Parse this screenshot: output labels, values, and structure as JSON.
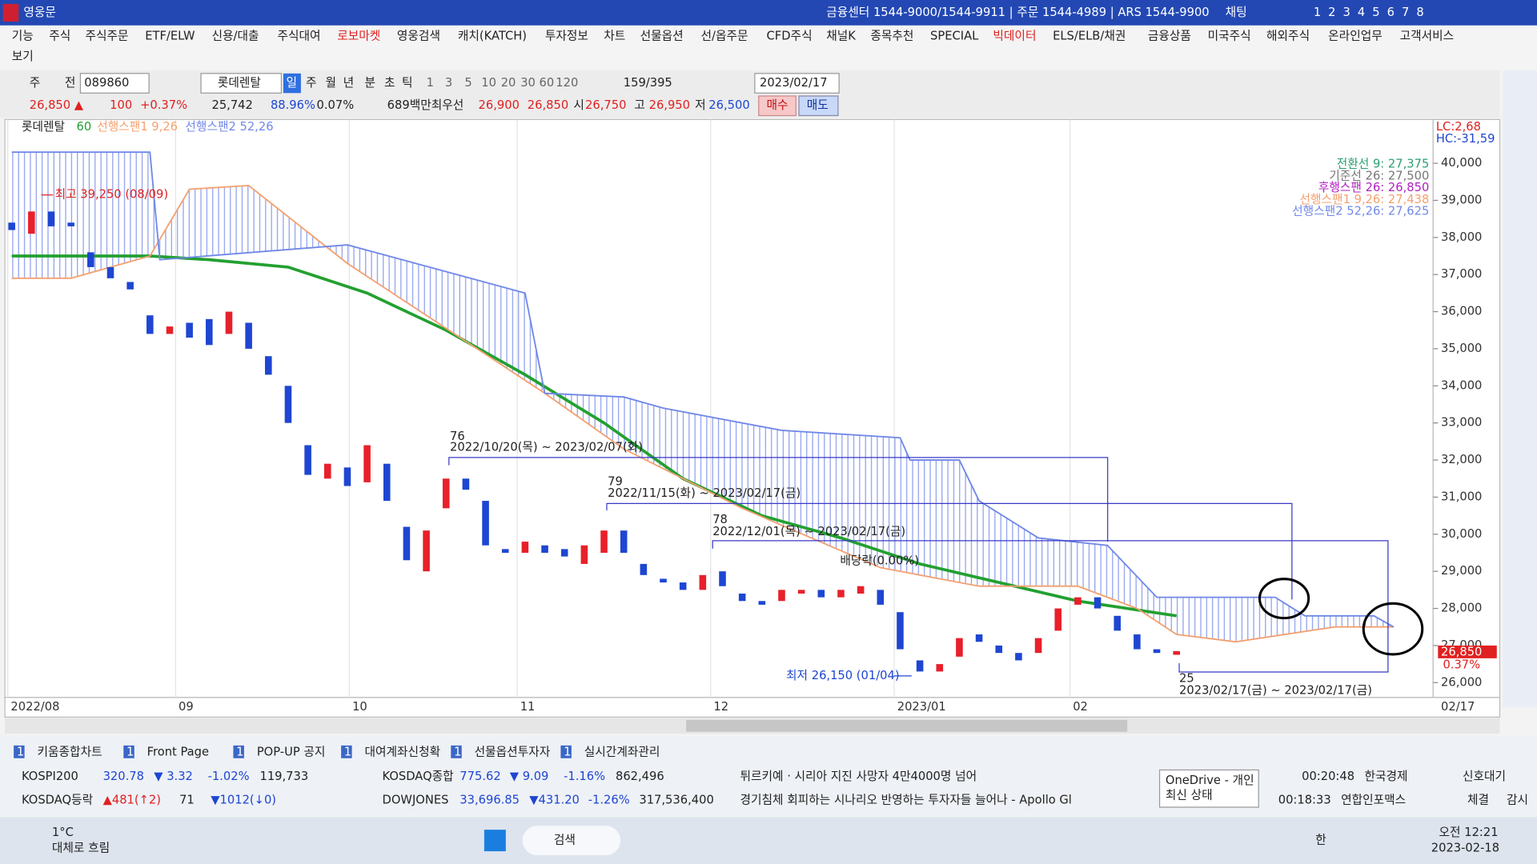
{
  "app": {
    "title": "영웅문",
    "center_info": "금융센터 1544-9000/1544-9911 | 주문 1544-4989 | ARS 1544-9900",
    "chat": "채팅",
    "screens": [
      "1",
      "2",
      "3",
      "4",
      "5",
      "6",
      "7",
      "8"
    ]
  },
  "menu": [
    "기능",
    "주식",
    "주식주문",
    "ETF/ELW",
    "신용/대출",
    "주식대여",
    "로보마켓",
    "영웅검색",
    "캐치(KATCH)",
    "투자정보",
    "차트",
    "선물옵션",
    "선/옵주문",
    "CFD주식",
    "채널K",
    "종목추천",
    "SPECIAL",
    "빅데이터",
    "ELS/ELB/채권",
    "금융상품",
    "미국주식",
    "해외주식",
    "온라인업무",
    "고객서비스",
    "보기"
  ],
  "toolbar": {
    "mode": "주",
    "market": "전",
    "code": "089860",
    "name": "롯데렌탈",
    "periods": [
      "일",
      "주",
      "월",
      "년",
      "분",
      "초",
      "틱"
    ],
    "intervals": [
      "1",
      "3",
      "5",
      "10",
      "20",
      "30",
      "60",
      "120"
    ],
    "count": "159/395",
    "date": "2023/02/17"
  },
  "quote": {
    "price": "26,850 ▲",
    "change": "100",
    "rate": "+0.37%",
    "volume": "25,742",
    "vol_ratio": "88.96%",
    "turnover": "0.07%",
    "amount": "689백만",
    "best_label": "최우선",
    "ask": "26,900",
    "bid": "26,850",
    "open_label": "시",
    "open": "26,750",
    "high_label": "고",
    "high": "26,950",
    "low_label": "저",
    "low": "26,500",
    "buy": "매수",
    "sell": "매도"
  },
  "chart_data": {
    "type": "candlestick",
    "stock": "롯데렌탈",
    "up_color": "#e8202a",
    "down_color": "#1e46d2",
    "open": [
      38400,
      38100,
      38700,
      38400,
      37600,
      37200,
      36800,
      35900,
      35400,
      35700,
      35800,
      35400,
      35700,
      34800,
      34000,
      32400,
      31500,
      31800,
      31400,
      31900,
      30200,
      29000,
      30700,
      31500,
      30900,
      29600,
      29500,
      29700,
      29600,
      29200,
      29500,
      30100,
      29200,
      28800,
      28700,
      28500,
      29000,
      28400,
      28200,
      28200,
      28400,
      28500,
      28300,
      28400,
      28500,
      27900,
      26600,
      26300,
      26700,
      27300,
      27000,
      26800,
      26800,
      27400,
      28100,
      28300,
      27800,
      27300,
      26900,
      26750
    ],
    "close": [
      38200,
      38700,
      38300,
      38300,
      37200,
      36900,
      36600,
      35400,
      35600,
      35300,
      35100,
      36000,
      35000,
      34300,
      33000,
      31600,
      31900,
      31300,
      32400,
      30900,
      29300,
      30100,
      31500,
      31200,
      29700,
      29500,
      29800,
      29500,
      29400,
      29700,
      30100,
      29500,
      28900,
      28700,
      28500,
      28900,
      28600,
      28200,
      28100,
      28500,
      28500,
      28300,
      28500,
      28600,
      28100,
      26900,
      26300,
      26500,
      27200,
      27100,
      26800,
      26600,
      27200,
      28000,
      28300,
      28000,
      27400,
      26900,
      26800,
      26850
    ],
    "lines": [
      {
        "name": "60",
        "color": "#22a030",
        "x": [
          0,
          7,
          10,
          14,
          18,
          22,
          26,
          30,
          34,
          38,
          42,
          46,
          50,
          54,
          59
        ],
        "values": [
          37500,
          37500,
          37400,
          37200,
          36500,
          35500,
          34300,
          33000,
          31500,
          30500,
          29900,
          29200,
          28700,
          28200,
          27800
        ]
      },
      {
        "name": "선행스팬1 9,26",
        "color": "#f4a070",
        "x": [
          0,
          3,
          7,
          9,
          12,
          17,
          27,
          31,
          37,
          44,
          49,
          54,
          57,
          59,
          62,
          67,
          70
        ],
        "values": [
          36900,
          36900,
          37500,
          39300,
          39400,
          37300,
          33800,
          32300,
          30700,
          29100,
          28600,
          28600,
          28000,
          27300,
          27100,
          27500,
          27500
        ]
      },
      {
        "name": "선행스팬2 52,26",
        "color": "#7088e8",
        "x": [
          0,
          7,
          7.5,
          17,
          26,
          27,
          31,
          33,
          39,
          45,
          45.5,
          48,
          49,
          52,
          55.5,
          58,
          64,
          65.5,
          69,
          70
        ],
        "values": [
          40300,
          40300,
          37400,
          37800,
          36500,
          33800,
          33700,
          33400,
          32800,
          32600,
          32000,
          32000,
          30900,
          29900,
          29700,
          28300,
          28300,
          27800,
          27800,
          27500
        ]
      }
    ],
    "ylim": [
      25600,
      41100
    ],
    "yticks": [
      {
        "value": 40000,
        "label": "40,000"
      },
      {
        "value": 39000,
        "label": "39,000"
      },
      {
        "value": 38000,
        "label": "38,000"
      },
      {
        "value": 37000,
        "label": "37,000"
      },
      {
        "value": 36000,
        "label": "36,000"
      },
      {
        "value": 35000,
        "label": "35,000"
      },
      {
        "value": 34000,
        "label": "34,000"
      },
      {
        "value": 33000,
        "label": "33,000"
      },
      {
        "value": 32000,
        "label": "32,000"
      },
      {
        "value": 31000,
        "label": "31,000"
      },
      {
        "value": 30000,
        "label": "30,000"
      },
      {
        "value": 29000,
        "label": "29,000"
      },
      {
        "value": 28000,
        "label": "28,000"
      },
      {
        "value": 27000,
        "label": "27,000"
      },
      {
        "value": 26000,
        "label": "26,000"
      }
    ],
    "xticks": [
      {
        "value": -0.2,
        "label": "2022/08"
      },
      {
        "value": 8.3,
        "label": "09"
      },
      {
        "value": 17.1,
        "label": "10"
      },
      {
        "value": 25.6,
        "label": "11"
      },
      {
        "value": 35.4,
        "label": "12"
      },
      {
        "value": 44.7,
        "label": "2023/01"
      },
      {
        "value": 53.6,
        "label": "02"
      }
    ],
    "last_date": "02/17",
    "price_tag": "26,850",
    "price_tag_rate": "0.37%",
    "lc": "LC:2,68",
    "hc": "HC:-31,59",
    "info": [
      "전환선 9: 27,375",
      "기준선 26: 27,500",
      "후행스팬 26: 26,850",
      "선행스팬1 9,26: 27,438",
      "선행스팬2 52,26: 27,625"
    ],
    "annotations": {
      "high": "최고 39,250 (08/09)",
      "low": "최저 26,150 (01/04)",
      "r1_count": "76",
      "r1": "2022/10/20(목) ~ 2023/02/07(화)",
      "r2_count": "79",
      "r2": "2022/11/15(화) ~ 2023/02/17(금)",
      "r3_count": "78",
      "r3": "2022/12/01(목) ~ 2023/02/17(금)",
      "dividend": "배당락(0.00%)",
      "r4_count": "25",
      "r4": "2023/02/17(금) ~ 2023/02/17(금)"
    }
  },
  "tabs": {
    "badge": "1",
    "items": [
      "키움종합차트",
      "Front Page",
      "POP-UP 공지",
      "대여계좌신청확",
      "선물옵션투자자",
      "실시간계좌관리"
    ]
  },
  "ticker": {
    "row1": [
      "KOSPI200",
      "320.78",
      "▼ 3.32",
      "-1.02%",
      "119,733",
      "KOSDAQ종합",
      "775.62",
      "▼ 9.09",
      "-1.16%",
      "862,496",
      "튀르키예 · 시리아 지진 사망자 4만4000명 넘어",
      "00:20:48",
      "한국경제",
      "신호대기"
    ],
    "row2": [
      "KOSDAQ등락",
      "▲481(↑2)",
      "71",
      "▼1012(↓0)",
      "DOWJONES",
      "33,696.85",
      "▼431.20",
      "-1.26%",
      "317,536,400",
      "경기침체 회피하는 시나리오 반영하는 투자자들 늘어나 - Apollo Gl",
      "00:18:33",
      "연합인포맥스",
      "체결",
      "감시"
    ]
  },
  "tooltip": [
    "OneDrive - 개인",
    "최신 상태"
  ],
  "taskbar": {
    "temp": "1°C",
    "weather": "대체로 흐림",
    "search": "검색",
    "ime": "한",
    "time": "오전 12:21",
    "date": "2023-02-18"
  }
}
